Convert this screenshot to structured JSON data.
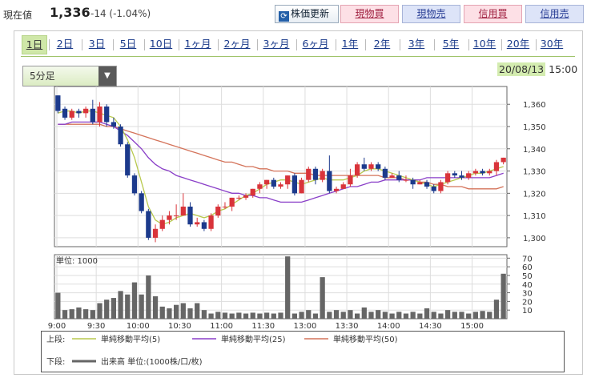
{
  "header": {
    "price_label": "現在値",
    "price_value": "1,336",
    "price_change": "-14 (-1.04%)",
    "update_icon": "refresh-icon",
    "update_label": "株価更新",
    "buttons": [
      {
        "label": "現物買",
        "kind": "buy"
      },
      {
        "label": "現物売",
        "kind": "sell"
      },
      {
        "label": "信用買",
        "kind": "buy"
      },
      {
        "label": "信用売",
        "kind": "sell"
      }
    ]
  },
  "tabs": [
    "1日",
    "2日",
    "3日",
    "5日",
    "10日",
    "1ヶ月",
    "2ヶ月",
    "3ヶ月",
    "6ヶ月",
    "1年",
    "2年",
    "3年",
    "5年",
    "10年",
    "20年",
    "30年"
  ],
  "active_tab": "1日",
  "interval": {
    "selected": "5分足"
  },
  "datetime": {
    "date": "20/08/13",
    "time": "15:00"
  },
  "colors": {
    "up": "#d9343a",
    "down": "#1c3a8c",
    "ma5": "#b8c94e",
    "ma25": "#8a3fc8",
    "ma50": "#d4735a",
    "volume": "#666666",
    "tab_active": "#cfe7a8"
  },
  "legend": {
    "upper_label": "上段:",
    "lower_label": "下段:",
    "ma5": "単純移動平均(5)",
    "ma25": "単純移動平均(25)",
    "ma50": "単純移動平均(50)",
    "volume": "出来高 単位:(1000株/口/枚)"
  },
  "chart_data": {
    "type": "candlestick",
    "title": "",
    "x_ticks": [
      "9:00",
      "9:30",
      "10:00",
      "10:30",
      "11:00",
      "11:30",
      "13:00",
      "13:30",
      "14:00",
      "14:30",
      "15:00"
    ],
    "price_ticks": [
      1300,
      1310,
      1320,
      1330,
      1340,
      1350,
      1360
    ],
    "price_ylim": [
      1296,
      1368
    ],
    "price_tick_labels": [
      "1,300",
      "1,310",
      "1,320",
      "1,330",
      "1,340",
      "1,350",
      "1,360"
    ],
    "volume_unit_label": "単位: 1000",
    "volume_ticks": [
      10,
      20,
      30,
      40,
      50,
      60,
      70
    ],
    "volume_ylim": [
      0,
      74
    ],
    "candles": [
      [
        1364,
        1357,
        1364,
        1356
      ],
      [
        1358,
        1354,
        1359,
        1353
      ],
      [
        1354,
        1357,
        1358,
        1353
      ],
      [
        1357,
        1356,
        1358,
        1354
      ],
      [
        1356,
        1358,
        1359,
        1354
      ],
      [
        1358,
        1352,
        1362,
        1351
      ],
      [
        1352,
        1359,
        1361,
        1350
      ],
      [
        1359,
        1352,
        1360,
        1350
      ],
      [
        1352,
        1350,
        1354,
        1349
      ],
      [
        1350,
        1342,
        1351,
        1341
      ],
      [
        1342,
        1328,
        1343,
        1327
      ],
      [
        1328,
        1320,
        1329,
        1319
      ],
      [
        1320,
        1312,
        1321,
        1311
      ],
      [
        1312,
        1300,
        1313,
        1299
      ],
      [
        1300,
        1304,
        1306,
        1298
      ],
      [
        1304,
        1308,
        1310,
        1303
      ],
      [
        1308,
        1310,
        1312,
        1306
      ],
      [
        1310,
        1310,
        1315,
        1308
      ],
      [
        1310,
        1314,
        1320,
        1310
      ],
      [
        1314,
        1306,
        1316,
        1305
      ],
      [
        1306,
        1307,
        1309,
        1305
      ],
      [
        1307,
        1304,
        1308,
        1303
      ],
      [
        1304,
        1310,
        1311,
        1303
      ],
      [
        1310,
        1314,
        1315,
        1309
      ],
      [
        1314,
        1314,
        1316,
        1313
      ],
      [
        1314,
        1318,
        1318,
        1312
      ],
      [
        1318,
        1318,
        1319,
        1317
      ],
      [
        1318,
        1319,
        1320,
        1317
      ],
      [
        1319,
        1322,
        1322,
        1318
      ],
      [
        1322,
        1324,
        1325,
        1320
      ],
      [
        1324,
        1326,
        1326,
        1322
      ],
      [
        1326,
        1323,
        1327,
        1322
      ],
      [
        1323,
        1324,
        1325,
        1322
      ],
      [
        1324,
        1328,
        1328,
        1322
      ],
      [
        1328,
        1320,
        1329,
        1319
      ],
      [
        1320,
        1326,
        1327,
        1320
      ],
      [
        1326,
        1331,
        1332,
        1325
      ],
      [
        1331,
        1326,
        1332,
        1324
      ],
      [
        1326,
        1330,
        1331,
        1325
      ],
      [
        1330,
        1321,
        1337,
        1320
      ],
      [
        1321,
        1322,
        1323,
        1320
      ],
      [
        1322,
        1324,
        1325,
        1322
      ],
      [
        1324,
        1328,
        1331,
        1323
      ],
      [
        1328,
        1333,
        1334,
        1327
      ],
      [
        1333,
        1331,
        1336,
        1330
      ],
      [
        1331,
        1333,
        1334,
        1330
      ],
      [
        1333,
        1331,
        1334,
        1330
      ],
      [
        1331,
        1327,
        1332,
        1326
      ],
      [
        1327,
        1328,
        1329,
        1327
      ],
      [
        1328,
        1326,
        1330,
        1325
      ],
      [
        1326,
        1326,
        1328,
        1325
      ],
      [
        1326,
        1324,
        1327,
        1322
      ],
      [
        1324,
        1325,
        1326,
        1324
      ],
      [
        1325,
        1323,
        1326,
        1322
      ],
      [
        1323,
        1321,
        1324,
        1320
      ],
      [
        1321,
        1325,
        1326,
        1320
      ],
      [
        1325,
        1329,
        1330,
        1324
      ],
      [
        1329,
        1328,
        1330,
        1327
      ],
      [
        1328,
        1327,
        1330,
        1326
      ],
      [
        1327,
        1329,
        1330,
        1326
      ],
      [
        1329,
        1330,
        1331,
        1328
      ],
      [
        1330,
        1329,
        1331,
        1328
      ],
      [
        1329,
        1330,
        1331,
        1328
      ],
      [
        1330,
        1334,
        1335,
        1328
      ],
      [
        1334,
        1336,
        1336,
        1333
      ]
    ],
    "ma5": [
      1356,
      1357,
      1357,
      1356,
      1357,
      1357,
      1356,
      1355,
      1354,
      1350,
      1344,
      1336,
      1325,
      1314,
      1308,
      1306,
      1307,
      1309,
      1310,
      1311,
      1310,
      1309,
      1310,
      1312,
      1313,
      1315,
      1317,
      1319,
      1320,
      1322,
      1324,
      1325,
      1326,
      1326,
      1325,
      1324,
      1325,
      1326,
      1327,
      1326,
      1326,
      1326,
      1327,
      1328,
      1330,
      1331,
      1331,
      1330,
      1329,
      1328,
      1327,
      1326,
      1325,
      1324,
      1323,
      1324,
      1325,
      1326,
      1327,
      1328,
      1329,
      1329,
      1330,
      1331,
      1332
    ],
    "ma25": [
      1351,
      1351,
      1352,
      1352,
      1352,
      1352,
      1352,
      1351,
      1350,
      1348,
      1346,
      1343,
      1340,
      1336,
      1333,
      1331,
      1330,
      1328,
      1327,
      1326,
      1325,
      1324,
      1323,
      1322,
      1321,
      1320,
      1320,
      1319,
      1319,
      1318,
      1318,
      1317,
      1316,
      1316,
      1316,
      1316,
      1317,
      1318,
      1319,
      1320,
      1321,
      1322,
      1323,
      1323,
      1324,
      1325,
      1325,
      1326,
      1326,
      1326,
      1326,
      1326,
      1326,
      1327,
      1327,
      1327,
      1327,
      1327,
      1327,
      1327,
      1327,
      1327,
      1327,
      1328,
      1329
    ],
    "ma50": [
      1351,
      1351,
      1351,
      1351,
      1351,
      1351,
      1351,
      1350,
      1350,
      1349,
      1348,
      1347,
      1346,
      1345,
      1344,
      1343,
      1342,
      1341,
      1340,
      1339,
      1338,
      1337,
      1336,
      1335,
      1334,
      1334,
      1333,
      1332,
      1332,
      1331,
      1331,
      1330,
      1330,
      1330,
      1329,
      1329,
      1329,
      1328,
      1328,
      1328,
      1328,
      1328,
      1328,
      1328,
      1328,
      1328,
      1328,
      1327,
      1327,
      1327,
      1326,
      1326,
      1325,
      1325,
      1324,
      1324,
      1323,
      1323,
      1323,
      1322,
      1322,
      1322,
      1322,
      1322,
      1323
    ],
    "volume": [
      30,
      10,
      11,
      13,
      11,
      10,
      18,
      22,
      24,
      32,
      28,
      42,
      28,
      50,
      26,
      14,
      12,
      16,
      18,
      12,
      18,
      10,
      6,
      8,
      7,
      6,
      7,
      6,
      7,
      6,
      7,
      6,
      7,
      72,
      6,
      8,
      10,
      6,
      48,
      8,
      10,
      8,
      10,
      6,
      13,
      8,
      10,
      8,
      6,
      8,
      6,
      8,
      6,
      12,
      8,
      6,
      10,
      8,
      8,
      6,
      8,
      9,
      8,
      22,
      52
    ]
  }
}
